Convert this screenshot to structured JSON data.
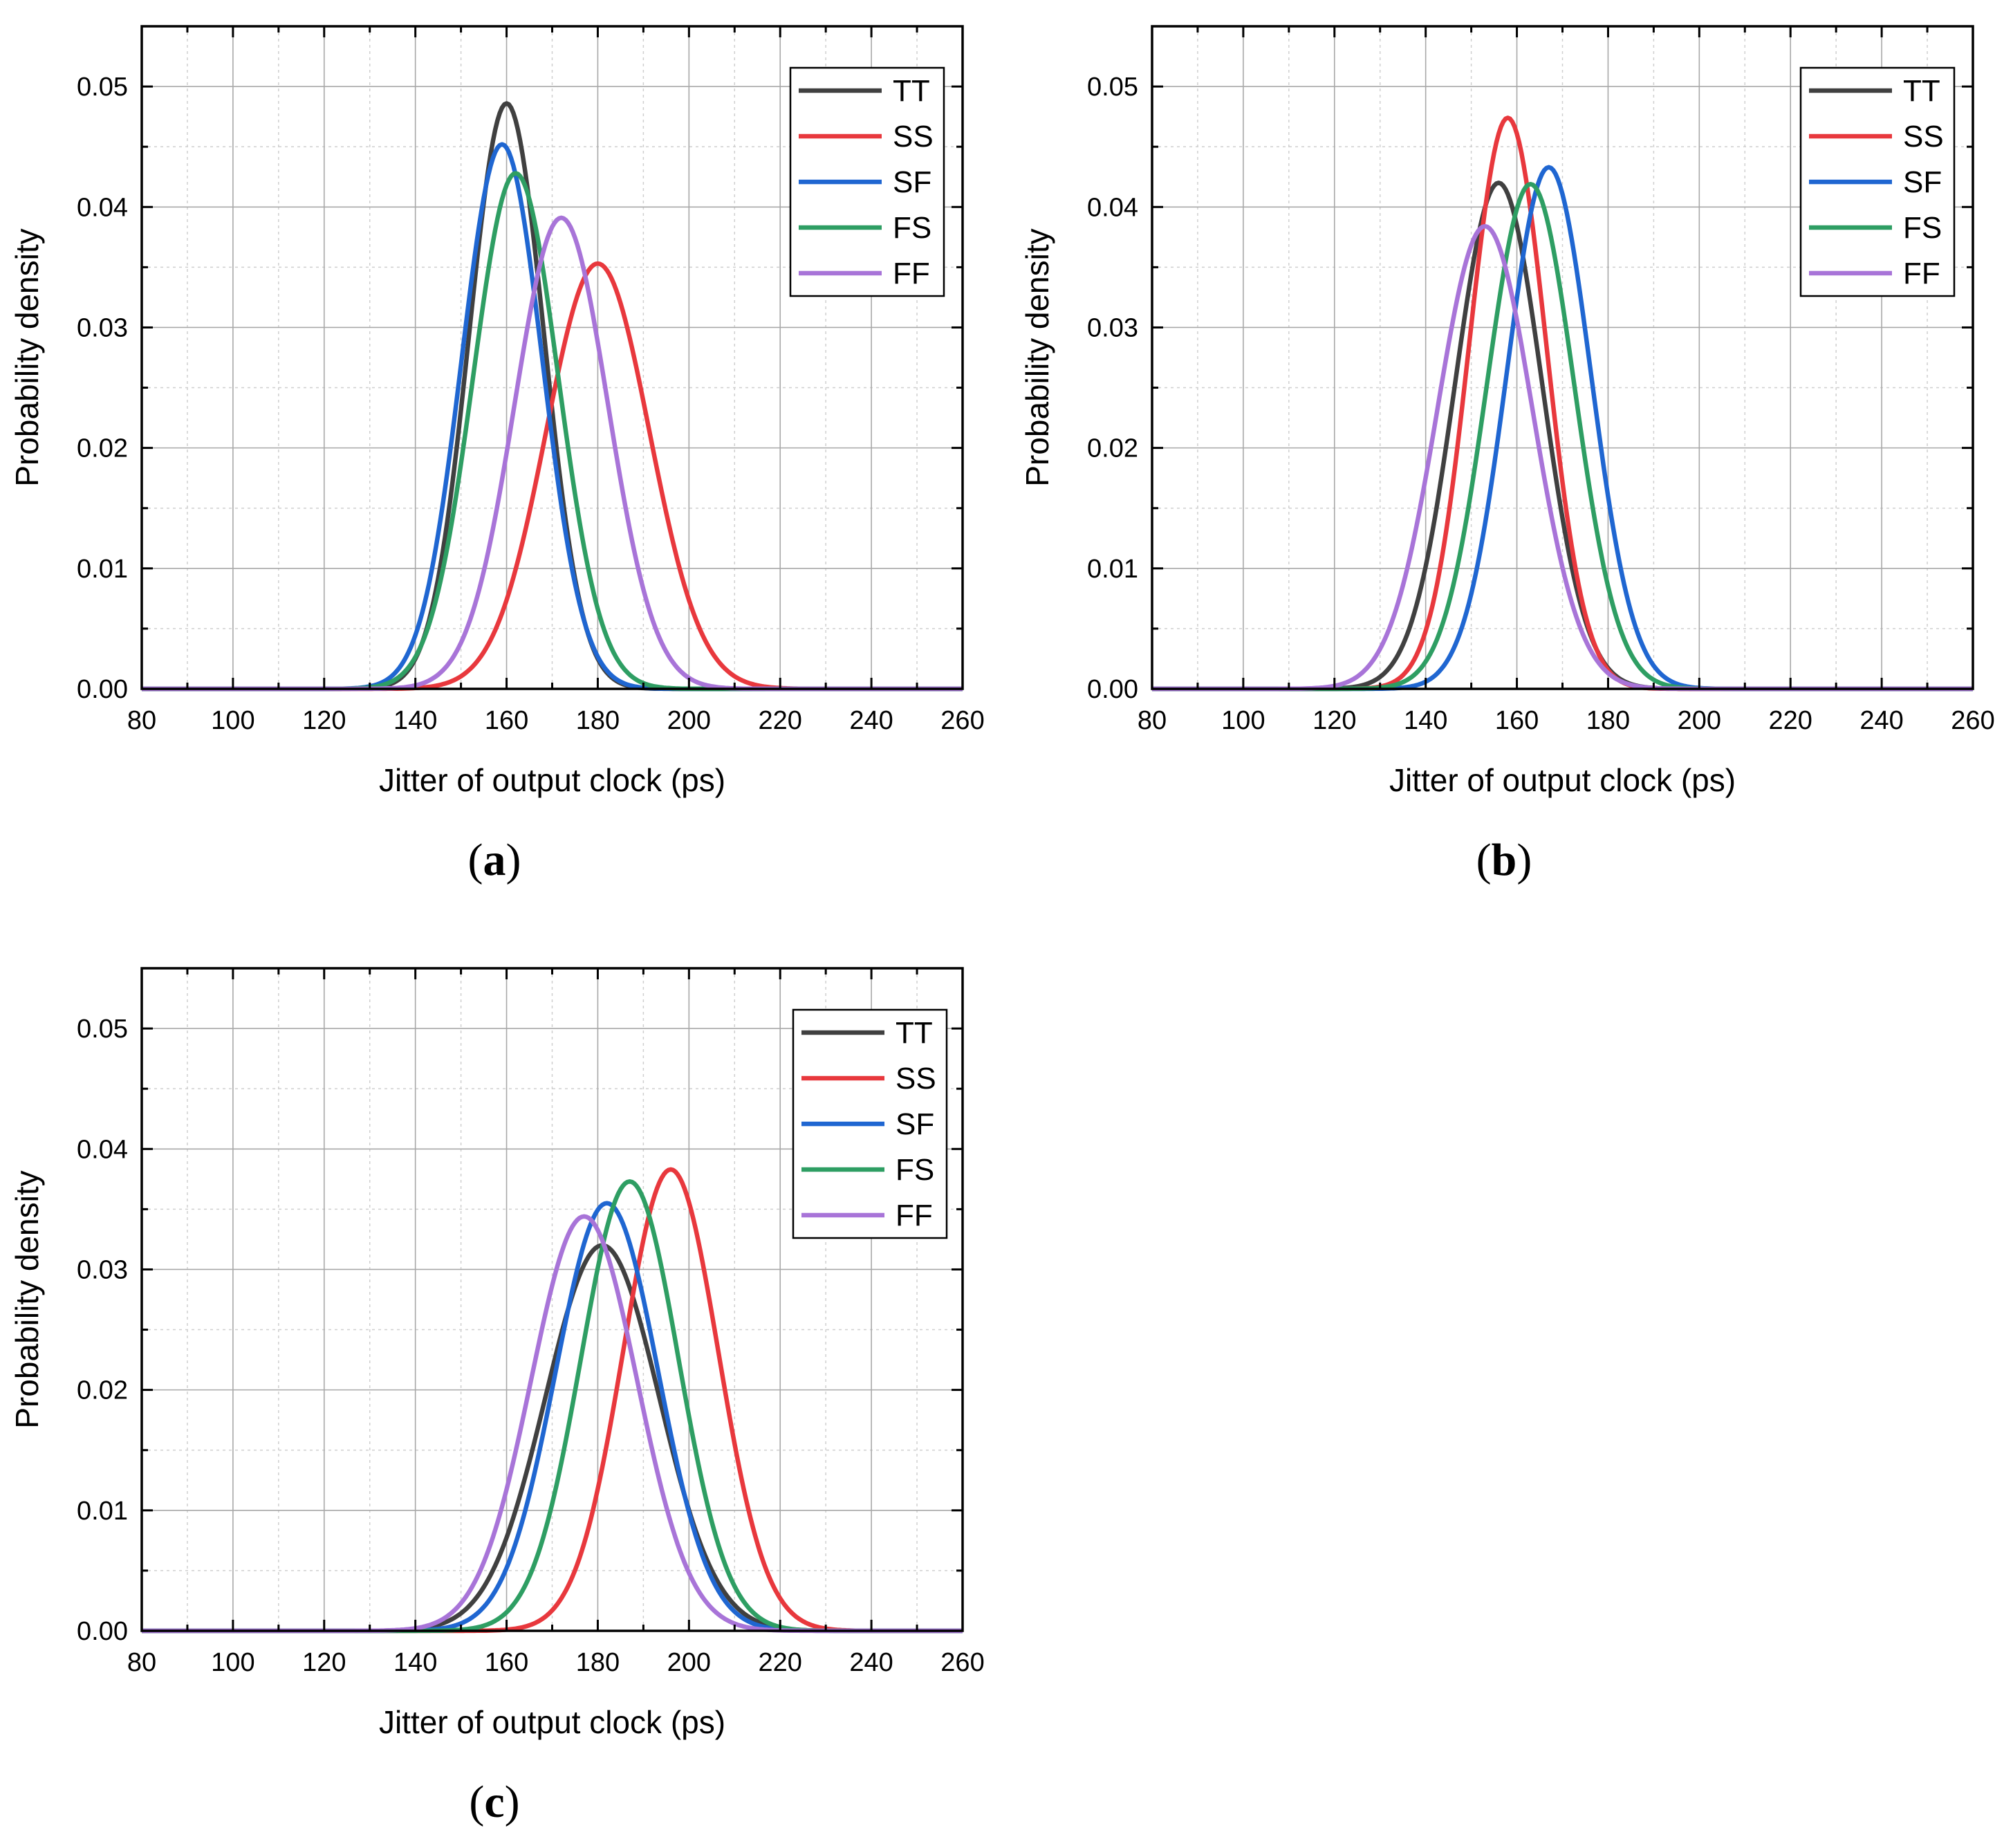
{
  "figure": {
    "series_order": [
      "TT",
      "SS",
      "SF",
      "FS",
      "FF"
    ],
    "colors": {
      "TT": "#404040",
      "SS": "#e8383d",
      "SF": "#1f66d1",
      "FS": "#2e9e63",
      "FF": "#a874d8"
    }
  },
  "chart_data": [
    {
      "type": "line",
      "panel_label": "a",
      "xlabel": "Jitter of output clock (ps)",
      "ylabel": "Probability density",
      "xlim": [
        80,
        260
      ],
      "ylim": [
        0,
        0.055
      ],
      "xticks": [
        "80",
        "100",
        "120",
        "140",
        "160",
        "180",
        "200",
        "220",
        "240",
        "260"
      ],
      "yticks": [
        "0.00",
        "0.01",
        "0.02",
        "0.03",
        "0.04",
        "0.05"
      ],
      "grid": true,
      "legend_position": "top-right",
      "series": [
        {
          "name": "TT",
          "distribution": "gaussian",
          "mean": 160,
          "peak": 0.0486
        },
        {
          "name": "SS",
          "distribution": "gaussian",
          "mean": 180,
          "peak": 0.0353
        },
        {
          "name": "SF",
          "distribution": "gaussian",
          "mean": 159,
          "peak": 0.0452
        },
        {
          "name": "FS",
          "distribution": "gaussian",
          "mean": 162,
          "peak": 0.0428
        },
        {
          "name": "FF",
          "distribution": "gaussian",
          "mean": 172,
          "peak": 0.0391
        }
      ]
    },
    {
      "type": "line",
      "panel_label": "b",
      "xlabel": "Jitter of output clock (ps)",
      "ylabel": "Probability density",
      "xlim": [
        80,
        260
      ],
      "ylim": [
        0,
        0.055
      ],
      "xticks": [
        "80",
        "100",
        "120",
        "140",
        "160",
        "180",
        "200",
        "220",
        "240",
        "260"
      ],
      "yticks": [
        "0.00",
        "0.01",
        "0.02",
        "0.03",
        "0.04",
        "0.05"
      ],
      "grid": true,
      "legend_position": "top-right",
      "series": [
        {
          "name": "TT",
          "distribution": "gaussian",
          "mean": 156,
          "peak": 0.042
        },
        {
          "name": "SS",
          "distribution": "gaussian",
          "mean": 158,
          "peak": 0.0474
        },
        {
          "name": "SF",
          "distribution": "gaussian",
          "mean": 167,
          "peak": 0.0433
        },
        {
          "name": "FS",
          "distribution": "gaussian",
          "mean": 163,
          "peak": 0.0419
        },
        {
          "name": "FF",
          "distribution": "gaussian",
          "mean": 153,
          "peak": 0.0384
        }
      ]
    },
    {
      "type": "line",
      "panel_label": "c",
      "xlabel": "Jitter of output clock (ps)",
      "ylabel": "Probability density",
      "xlim": [
        80,
        260
      ],
      "ylim": [
        0,
        0.055
      ],
      "xticks": [
        "80",
        "100",
        "120",
        "140",
        "160",
        "180",
        "200",
        "220",
        "240",
        "260"
      ],
      "yticks": [
        "0.00",
        "0.01",
        "0.02",
        "0.03",
        "0.04",
        "0.05"
      ],
      "grid": true,
      "legend_position": "top-right",
      "series": [
        {
          "name": "TT",
          "distribution": "gaussian",
          "mean": 181,
          "peak": 0.032
        },
        {
          "name": "SS",
          "distribution": "gaussian",
          "mean": 196,
          "peak": 0.0383
        },
        {
          "name": "SF",
          "distribution": "gaussian",
          "mean": 182,
          "peak": 0.0355
        },
        {
          "name": "FS",
          "distribution": "gaussian",
          "mean": 187,
          "peak": 0.0373
        },
        {
          "name": "FF",
          "distribution": "gaussian",
          "mean": 177,
          "peak": 0.0344
        }
      ]
    }
  ]
}
